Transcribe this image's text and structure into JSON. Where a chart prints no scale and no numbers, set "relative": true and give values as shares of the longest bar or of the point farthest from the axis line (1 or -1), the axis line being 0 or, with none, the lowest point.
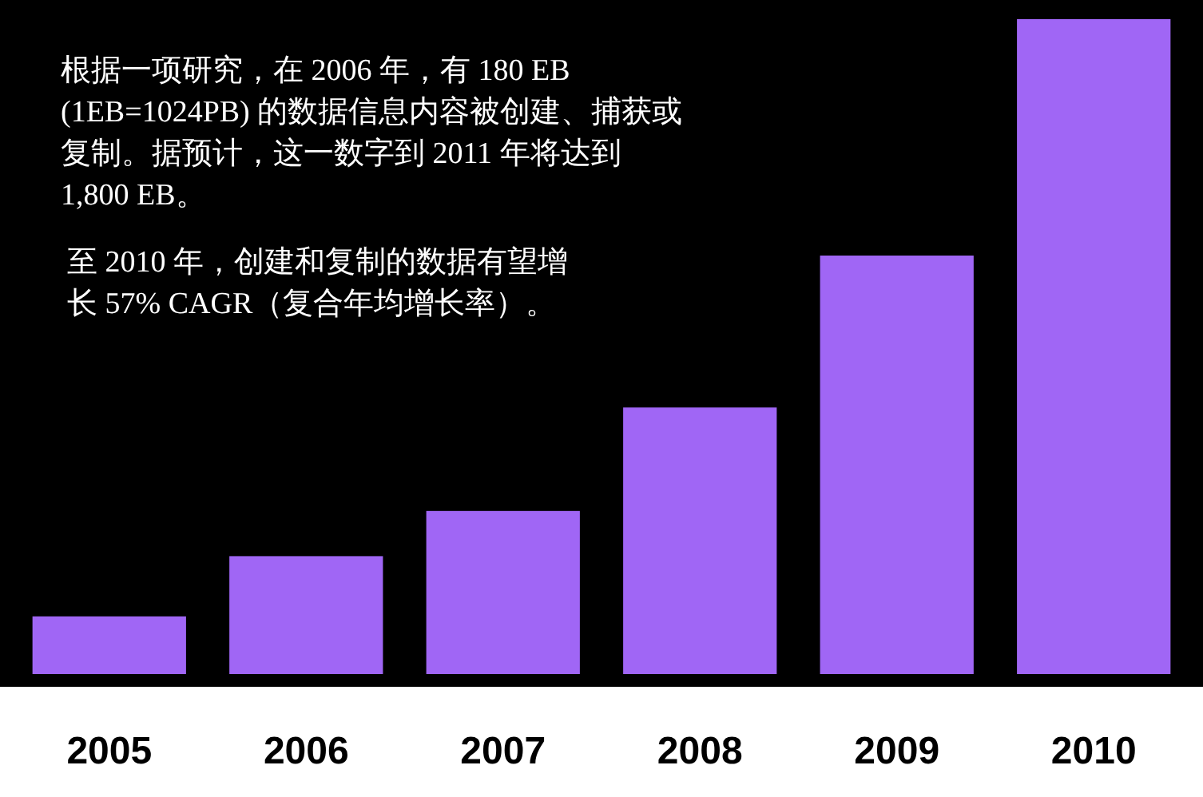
{
  "chart_data": {
    "type": "bar",
    "relative": true,
    "categories": [
      "2005",
      "2006",
      "2007",
      "2008",
      "2009",
      "2010"
    ],
    "values": [
      0.088,
      0.18,
      0.249,
      0.407,
      0.639,
      1
    ],
    "color": "#a066f5",
    "annotations": [
      "根据一项研究，在 2006 年，有 180 EB (1EB=1024PB) 的数据信息内容被创建、捕获或复制。据预计，这一数字到 2011 年将达到 1,800 EB。",
      "至 2010 年，创建和复制的数据有望增长 57% CAGR（复合年均增长率）。"
    ]
  }
}
